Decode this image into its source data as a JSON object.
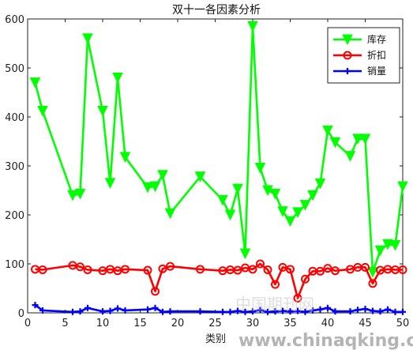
{
  "chart_data": {
    "type": "line",
    "title": "双十一各因素分析",
    "xlabel": "类别",
    "ylabel": "",
    "xlim": [
      0,
      50
    ],
    "ylim": [
      0,
      600
    ],
    "xticks": [
      0,
      5,
      10,
      15,
      20,
      25,
      30,
      35,
      40,
      45,
      50
    ],
    "yticks": [
      0,
      100,
      200,
      300,
      400,
      500,
      600
    ],
    "grid": false,
    "legend_position": "top-right",
    "x": [
      1,
      2,
      6,
      7,
      8,
      10,
      11,
      12,
      13,
      16,
      17,
      18,
      19,
      23,
      26,
      27,
      28,
      29,
      30,
      31,
      32,
      33,
      34,
      35,
      36,
      37,
      38,
      39,
      40,
      41,
      43,
      44,
      45,
      46,
      47,
      48,
      49,
      50
    ],
    "series": [
      {
        "name": "库存",
        "color": "#00ff00",
        "marker": "triangle-down",
        "values": [
          470,
          412,
          240,
          243,
          560,
          412,
          265,
          480,
          318,
          256,
          258,
          281,
          203,
          278,
          230,
          200,
          253,
          121,
          585,
          296,
          250,
          243,
          207,
          187,
          205,
          220,
          240,
          264,
          372,
          348,
          320,
          355,
          355,
          83,
          127,
          140,
          138,
          258
        ]
      },
      {
        "name": "折扣",
        "color": "#ff0000",
        "marker": "circle",
        "values": [
          89,
          88,
          97,
          94,
          88,
          86,
          89,
          86,
          89,
          87,
          44,
          90,
          95,
          89,
          86,
          88,
          87,
          92,
          89,
          100,
          88,
          58,
          93,
          89,
          30,
          69,
          85,
          85,
          91,
          86,
          89,
          93,
          93,
          60,
          87,
          89,
          88,
          88
        ]
      },
      {
        "name": "销量",
        "color": "#0000ff",
        "marker": "plus",
        "values": [
          16,
          5,
          2,
          3,
          10,
          3,
          4,
          9,
          5,
          7,
          10,
          2,
          3,
          3,
          2,
          2,
          4,
          2,
          3,
          6,
          2,
          3,
          4,
          3,
          4,
          2,
          5,
          7,
          10,
          3,
          3,
          6,
          8,
          4,
          3,
          7,
          2,
          2
        ]
      }
    ]
  },
  "watermark": {
    "cn": "中国期刊网",
    "url": "www.chinaqking.com"
  }
}
